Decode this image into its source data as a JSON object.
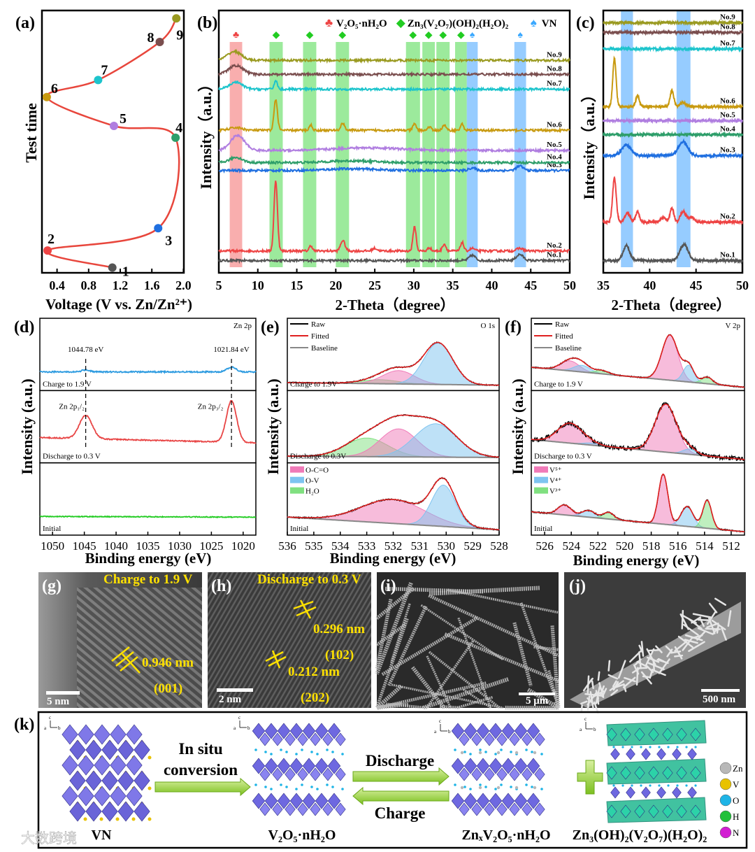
{
  "figure": {
    "watermark": "大数跨境"
  },
  "chart_data": [
    {
      "id": "a",
      "label": "(a)",
      "type": "line",
      "xlabel": "Voltage (V vs. Zn/Zn²⁺)",
      "ylabel": "Test time",
      "xlim": [
        0.2,
        2.0
      ],
      "ylim": [
        0,
        1
      ],
      "xticks": [
        "0.4",
        "0.8",
        "1.2",
        "1.6",
        "2.0"
      ],
      "line_color": "#e8463c",
      "points": [
        {
          "n": "1",
          "v": 1.1,
          "t": 0.02,
          "color": "#555555"
        },
        {
          "n": "2",
          "v": 0.28,
          "t": 0.085,
          "color": "#ee4444"
        },
        {
          "n": "3",
          "v": 1.68,
          "t": 0.17,
          "color": "#1f6fe0"
        },
        {
          "n": "4",
          "v": 1.9,
          "t": 0.515,
          "color": "#2e9e6a"
        },
        {
          "n": "5",
          "v": 1.12,
          "t": 0.56,
          "color": "#b07ee0"
        },
        {
          "n": "6",
          "v": 0.27,
          "t": 0.67,
          "color": "#c89a10"
        },
        {
          "n": "7",
          "v": 0.92,
          "t": 0.735,
          "color": "#1cc4cc"
        },
        {
          "n": "8",
          "v": 1.7,
          "t": 0.88,
          "color": "#7a4e4e"
        },
        {
          "n": "9",
          "v": 1.91,
          "t": 0.97,
          "color": "#9a9a20"
        }
      ]
    },
    {
      "id": "b",
      "label": "(b)",
      "type": "line",
      "xlabel": "2-Theta（degree）",
      "ylabel": "Intensity（a.u.）",
      "xlim": [
        5,
        50
      ],
      "ylim": [
        0,
        3
      ],
      "xticks": [
        "5",
        "10",
        "15",
        "20",
        "25",
        "30",
        "35",
        "40",
        "45",
        "50"
      ],
      "legend": [
        {
          "symbol": "♣",
          "text": "V₂O₅·nH₂O",
          "color": "#ee4444"
        },
        {
          "symbol": "◆",
          "text": "Zn₃(V₂O₇)(OH)₂(H₂O)₂",
          "color": "#22cc22"
        },
        {
          "symbol": "♠",
          "text": "VN",
          "color": "#3aa8ff"
        }
      ],
      "bands": [
        {
          "range": [
            6.4,
            8.0
          ],
          "phase": 0
        },
        {
          "range": [
            11.5,
            13.2
          ],
          "phase": 1
        },
        {
          "range": [
            15.8,
            17.5
          ],
          "phase": 1
        },
        {
          "range": [
            20.0,
            21.7
          ],
          "phase": 1
        },
        {
          "range": [
            29.0,
            30.8
          ],
          "phase": 1
        },
        {
          "range": [
            31.1,
            32.7
          ],
          "phase": 1
        },
        {
          "range": [
            32.9,
            34.6
          ],
          "phase": 1
        },
        {
          "range": [
            35.3,
            36.8
          ],
          "phase": 1
        },
        {
          "range": [
            36.8,
            38.2
          ],
          "phase": 2
        },
        {
          "range": [
            42.9,
            44.4
          ],
          "phase": 2
        }
      ],
      "series": [
        {
          "name": "No.1",
          "color": "#555555",
          "offset": 0.14,
          "peaks": [
            [
              37.5,
              0.06,
              0.4
            ],
            [
              43.6,
              0.07,
              0.45
            ]
          ]
        },
        {
          "name": "No.2",
          "color": "#ee4444",
          "offset": 0.25,
          "peaks": [
            [
              12.3,
              0.8,
              0.22
            ],
            [
              16.8,
              0.06,
              0.2
            ],
            [
              20.9,
              0.12,
              0.28
            ],
            [
              25.0,
              0.03,
              0.3
            ],
            [
              30.1,
              0.28,
              0.2
            ],
            [
              32.0,
              0.04,
              0.2
            ],
            [
              33.9,
              0.08,
              0.22
            ],
            [
              36.2,
              0.1,
              0.2
            ],
            [
              37.5,
              0.03,
              0.3
            ],
            [
              43.6,
              0.03,
              0.4
            ]
          ]
        },
        {
          "name": "No.3",
          "color": "#1f6fe0",
          "offset": 1.17,
          "peaks": [
            [
              22,
              0.02,
              3
            ],
            [
              37.5,
              0.03,
              0.4
            ],
            [
              43.6,
              0.05,
              0.45
            ]
          ]
        },
        {
          "name": "No.4",
          "color": "#2e9e6a",
          "offset": 1.26,
          "peaks": [
            [
              7.2,
              0.06,
              0.8
            ],
            [
              22,
              0.02,
              3
            ]
          ]
        },
        {
          "name": "No.5",
          "color": "#b07ee0",
          "offset": 1.4,
          "peaks": [
            [
              7.4,
              0.17,
              0.9
            ],
            [
              24,
              0.03,
              4
            ]
          ]
        },
        {
          "name": "No.6",
          "color": "#c89a10",
          "offset": 1.63,
          "peaks": [
            [
              7.2,
              0.03,
              0.8
            ],
            [
              12.3,
              0.35,
              0.22
            ],
            [
              16.8,
              0.06,
              0.2
            ],
            [
              20.9,
              0.08,
              0.25
            ],
            [
              30.1,
              0.07,
              0.22
            ],
            [
              32.0,
              0.04,
              0.2
            ],
            [
              33.9,
              0.06,
              0.22
            ],
            [
              36.2,
              0.07,
              0.2
            ]
          ]
        },
        {
          "name": "No.7",
          "color": "#1cc4cc",
          "offset": 2.1,
          "peaks": [
            [
              7.2,
              0.08,
              0.8
            ],
            [
              12.3,
              0.1,
              0.2
            ]
          ]
        },
        {
          "name": "No.8",
          "color": "#7a4e4e",
          "offset": 2.27,
          "peaks": [
            [
              7.2,
              0.1,
              0.9
            ]
          ]
        },
        {
          "name": "No.9",
          "color": "#9a9a20",
          "offset": 2.43,
          "peaks": [
            [
              7.0,
              0.1,
              0.9
            ]
          ]
        }
      ]
    },
    {
      "id": "c",
      "label": "(c)",
      "type": "line",
      "xlabel": "2-Theta（degree）",
      "ylabel": "Intensity（a.u.）",
      "xlim": [
        35,
        50
      ],
      "ylim": [
        0,
        3
      ],
      "xticks": [
        "35",
        "40",
        "45",
        "50"
      ],
      "bands": [
        {
          "range": [
            36.9,
            38.2
          ],
          "phase": 2
        },
        {
          "range": [
            42.9,
            44.4
          ],
          "phase": 2
        }
      ],
      "series": [
        {
          "name": "No.1",
          "color": "#555555",
          "offset": 0.14,
          "peaks": [
            [
              37.5,
              0.17,
              0.35
            ],
            [
              43.7,
              0.18,
              0.45
            ]
          ]
        },
        {
          "name": "No.2",
          "color": "#ee4444",
          "offset": 0.58,
          "peaks": [
            [
              36.2,
              0.5,
              0.2
            ],
            [
              37.6,
              0.1,
              0.3
            ],
            [
              38.7,
              0.12,
              0.2
            ],
            [
              41.5,
              0.05,
              0.3
            ],
            [
              42.4,
              0.16,
              0.2
            ],
            [
              43.6,
              0.12,
              0.3
            ],
            [
              44.5,
              0.06,
              0.3
            ]
          ]
        },
        {
          "name": "No.3",
          "color": "#1f6fe0",
          "offset": 1.34,
          "peaks": [
            [
              37.5,
              0.12,
              0.5
            ],
            [
              43.6,
              0.16,
              0.5
            ]
          ]
        },
        {
          "name": "No.4",
          "color": "#2e9e6a",
          "offset": 1.58,
          "peaks": []
        },
        {
          "name": "No.5",
          "color": "#b07ee0",
          "offset": 1.74,
          "peaks": []
        },
        {
          "name": "No.6",
          "color": "#c89a10",
          "offset": 1.9,
          "peaks": [
            [
              36.2,
              0.55,
              0.18
            ],
            [
              38.7,
              0.12,
              0.2
            ],
            [
              42.4,
              0.18,
              0.2
            ],
            [
              43.6,
              0.05,
              0.3
            ]
          ]
        },
        {
          "name": "No.7",
          "color": "#1cc4cc",
          "offset": 2.56,
          "peaks": []
        },
        {
          "name": "No.8",
          "color": "#7a4e4e",
          "offset": 2.75,
          "peaks": []
        },
        {
          "name": "No.9",
          "color": "#9a9a20",
          "offset": 2.86,
          "peaks": []
        }
      ]
    },
    {
      "id": "d",
      "label": "(d)",
      "type": "line",
      "corner": "Zn 2p",
      "xlabel": "Binding energy (eV)",
      "ylabel": "Intensity (a.u.)",
      "xlim": [
        1052,
        1018
      ],
      "xticks": [
        "1050",
        "1045",
        "1040",
        "1035",
        "1030",
        "1025",
        "1020"
      ],
      "markers": [
        {
          "text": "1044.78 eV",
          "x": 1044.78
        },
        {
          "text": "1021.84 eV",
          "x": 1021.84
        }
      ],
      "peak_labels": [
        {
          "text": "Zn 2p₁/₂",
          "x": 1044.78
        },
        {
          "text": "Zn 2p₃/₂",
          "x": 1021.84
        }
      ],
      "panels": [
        {
          "name": "Charge to 1.9 V",
          "color": "#2d9be0",
          "baseline": [
            0.28,
            0.28
          ],
          "noise": 0.01,
          "components": [
            {
              "x": 1044.78,
              "h": 0.03,
              "w": 0.6
            },
            {
              "x": 1021.84,
              "h": 0.07,
              "w": 0.7
            }
          ]
        },
        {
          "name": "Discharge to 0.3 V",
          "color": "#e84545",
          "baseline": [
            0.38,
            0.3
          ],
          "noise": 0.008,
          "components": [
            {
              "x": 1044.78,
              "h": 0.35,
              "w": 1.0
            },
            {
              "x": 1021.84,
              "h": 0.62,
              "w": 0.8
            }
          ]
        },
        {
          "name": "Initial",
          "color": "#22cc22",
          "baseline": [
            0.28,
            0.27
          ],
          "noise": 0.006,
          "components": []
        }
      ]
    },
    {
      "id": "e",
      "label": "(e)",
      "type": "line",
      "corner": "O 1s",
      "xlabel": "Binding energy (eV)",
      "ylabel": "Intensity (a.u.)",
      "xlim": [
        536,
        528
      ],
      "xticks": [
        "536",
        "535",
        "534",
        "533",
        "532",
        "531",
        "530",
        "529",
        "528"
      ],
      "line_legend": [
        {
          "text": "Raw",
          "color": "#000000"
        },
        {
          "text": "Fitted",
          "color": "#e02020"
        },
        {
          "text": "Baseline",
          "color": "#888888"
        }
      ],
      "component_legend": [
        {
          "text": "O-C=O",
          "color": "#f07ab8"
        },
        {
          "text": "O-V",
          "color": "#7ec4f0"
        },
        {
          "text": "H₂O",
          "color": "#80e080"
        }
      ],
      "panels": [
        {
          "name": "Charge to 1.9V",
          "baseline": [
            0.12,
            0.08
          ],
          "noise": 0.008,
          "components": [
            {
              "species": "H₂O",
              "x": 532.5,
              "h": 0.06,
              "w": 0.7
            },
            {
              "species": "O-C=O",
              "x": 531.8,
              "h": 0.2,
              "w": 0.6
            },
            {
              "species": "O-V",
              "x": 530.3,
              "h": 0.62,
              "w": 0.55
            }
          ]
        },
        {
          "name": "Discharge to 0.3V",
          "baseline": [
            0.1,
            0.08
          ],
          "noise": 0.008,
          "components": [
            {
              "species": "H₂O",
              "x": 533.0,
              "h": 0.28,
              "w": 0.8
            },
            {
              "species": "O-C=O",
              "x": 531.8,
              "h": 0.42,
              "w": 0.7
            },
            {
              "species": "O-V",
              "x": 530.4,
              "h": 0.5,
              "w": 0.8
            }
          ]
        },
        {
          "name": "Initial",
          "baseline": [
            0.27,
            0.08
          ],
          "noise": 0.01,
          "components": [
            {
              "species": "O-C=O",
              "x": 532.0,
              "h": 0.36,
              "w": 1.2
            },
            {
              "species": "O-V",
              "x": 530.1,
              "h": 0.62,
              "w": 0.45
            }
          ]
        }
      ]
    },
    {
      "id": "f",
      "label": "(f)",
      "type": "line",
      "corner": "V 2p",
      "xlabel": "Binding energy (eV)",
      "ylabel": "Intensity (a.u.)",
      "xlim": [
        527,
        511
      ],
      "xticks": [
        "526",
        "524",
        "522",
        "520",
        "518",
        "516",
        "514",
        "512"
      ],
      "line_legend": [
        {
          "text": "Raw",
          "color": "#000000"
        },
        {
          "text": "Fitted",
          "color": "#e02020"
        },
        {
          "text": "Baseline",
          "color": "#888888"
        }
      ],
      "component_legend": [
        {
          "text": "V⁵⁺",
          "color": "#f07ab8"
        },
        {
          "text": "V⁴⁺",
          "color": "#7ec4f0"
        },
        {
          "text": "V³⁺",
          "color": "#80e080"
        }
      ],
      "panels": [
        {
          "name": "Charge to 1.9 V",
          "baseline": [
            0.35,
            0.05
          ],
          "noise": 0.008,
          "components": [
            {
              "species": "V⁵⁺",
              "x": 524.1,
              "h": 0.15,
              "w": 0.7
            },
            {
              "species": "V⁴⁺",
              "x": 523.2,
              "h": 0.1,
              "w": 0.6
            },
            {
              "species": "V³⁺",
              "x": 521.7,
              "h": 0.05,
              "w": 0.5
            },
            {
              "species": "V⁵⁺",
              "x": 516.6,
              "h": 0.68,
              "w": 0.6
            },
            {
              "species": "V⁴⁺",
              "x": 515.2,
              "h": 0.25,
              "w": 0.4
            },
            {
              "species": "V³⁺",
              "x": 513.8,
              "h": 0.1,
              "w": 0.4
            }
          ]
        },
        {
          "name": "Discharge to 0.3 V",
          "baseline": [
            0.35,
            0.05
          ],
          "noise": 0.035,
          "components": [
            {
              "species": "V⁵⁺",
              "x": 524.1,
              "h": 0.3,
              "w": 0.9
            },
            {
              "species": "V⁴⁺",
              "x": 522.5,
              "h": 0.03,
              "w": 0.6
            },
            {
              "species": "V⁵⁺",
              "x": 516.9,
              "h": 0.72,
              "w": 0.8
            },
            {
              "species": "V⁴⁺",
              "x": 515.1,
              "h": 0.08,
              "w": 0.5
            }
          ]
        },
        {
          "name": "Initial",
          "baseline": [
            0.35,
            0.05
          ],
          "noise": 0.01,
          "components": [
            {
              "species": "V⁵⁺",
              "x": 524.5,
              "h": 0.15,
              "w": 0.5
            },
            {
              "species": "V⁴⁺",
              "x": 522.7,
              "h": 0.1,
              "w": 0.5
            },
            {
              "species": "V³⁺",
              "x": 521.2,
              "h": 0.1,
              "w": 0.4
            },
            {
              "species": "V⁵⁺",
              "x": 517.1,
              "h": 0.75,
              "w": 0.35
            },
            {
              "species": "V⁴⁺",
              "x": 515.3,
              "h": 0.3,
              "w": 0.45
            },
            {
              "species": "V³⁺",
              "x": 513.8,
              "h": 0.42,
              "w": 0.33
            }
          ]
        }
      ]
    }
  ],
  "micrographs": [
    {
      "label": "(g)",
      "caption": "Charge to 1.9 V",
      "scale": "5 nm",
      "spacing": "0.946 nm",
      "plane": "(001)"
    },
    {
      "label": "(h)",
      "caption": "Discharge to 0.3 V",
      "scale": "2 nm",
      "spacings": [
        {
          "d": "0.296 nm",
          "plane": "(102)"
        },
        {
          "d": "0.212 nm",
          "plane": "(202)"
        }
      ]
    },
    {
      "label": "(i)",
      "scale": "5 μm"
    },
    {
      "label": "(j)",
      "scale": "500 nm"
    }
  ],
  "schematic": {
    "label": "(k)",
    "axes": [
      "c",
      "a",
      "b"
    ],
    "step1": [
      "In situ",
      "conversion"
    ],
    "discharge": "Discharge",
    "charge": "Charge",
    "captions": [
      "VN",
      "V₂O₅·nH₂O",
      "ZnₓV₂O₅·nH₂O",
      "Zn₃(OH)₂(V₂O₇)(H₂O)₂"
    ],
    "atoms": [
      {
        "symbol": "Zn",
        "color": "#b8b8b8"
      },
      {
        "symbol": "V",
        "color": "#e8c200"
      },
      {
        "symbol": "O",
        "color": "#1eb4e6"
      },
      {
        "symbol": "H",
        "color": "#22c03a"
      },
      {
        "symbol": "N",
        "color": "#d21ed2"
      }
    ]
  }
}
